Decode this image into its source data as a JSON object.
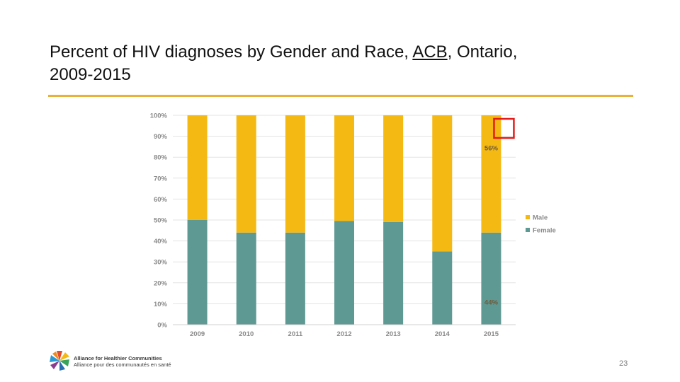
{
  "slide": {
    "title_part1": "Percent of HIV diagnoses by Gender and Race, ",
    "title_underlined": "ACB",
    "title_part2": ", Ontario,",
    "title_line2": "2009-2015",
    "page_number": "23",
    "accent_color": "#e8b13a"
  },
  "logo": {
    "line1": "Alliance for Healthier Communities",
    "line2": "Alliance pour des communautés en santé"
  },
  "chart_data": {
    "type": "bar",
    "stacked": true,
    "categories": [
      "2009",
      "2010",
      "2011",
      "2012",
      "2013",
      "2014",
      "2015"
    ],
    "series": [
      {
        "name": "Female",
        "color": "#5f9994",
        "values": [
          50,
          44,
          44,
          49.5,
          49,
          35,
          44
        ]
      },
      {
        "name": "Male",
        "color": "#f5b914",
        "values": [
          50,
          56,
          56,
          50.5,
          51,
          65,
          56
        ]
      }
    ],
    "ylim": [
      0,
      100
    ],
    "y_ticks": [
      "0%",
      "10%",
      "20%",
      "30%",
      "40%",
      "50%",
      "60%",
      "70%",
      "80%",
      "90%",
      "100%"
    ],
    "grid": true,
    "legend": {
      "position": "right",
      "entries": [
        "Male",
        "Female"
      ]
    },
    "annotations": [
      {
        "category": "2015",
        "series": "Male",
        "text": "56%"
      },
      {
        "category": "2015",
        "series": "Female",
        "text": "44%"
      }
    ],
    "highlight_box": {
      "category": "2015",
      "color": "#e31b1b"
    }
  }
}
